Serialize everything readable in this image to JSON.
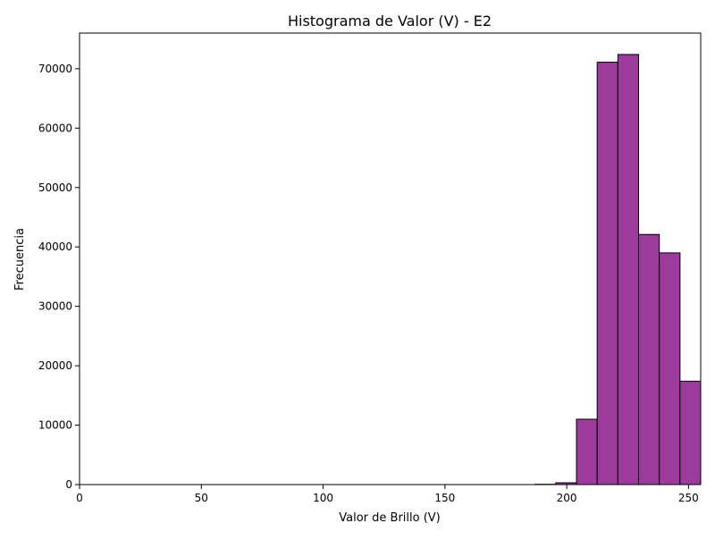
{
  "chart_data": {
    "type": "bar",
    "title": "Histograma de Valor (V) - E2",
    "xlabel": "Valor de Brillo (V)",
    "ylabel": "Frecuencia",
    "xlim": [
      0,
      255
    ],
    "ylim": [
      0,
      76000
    ],
    "xticks": [
      0,
      50,
      100,
      150,
      200,
      250
    ],
    "yticks": [
      0,
      10000,
      20000,
      30000,
      40000,
      50000,
      60000,
      70000
    ],
    "grid": false,
    "colors": {
      "bar_fill": "#9b3b9b",
      "bar_edge": "#000000"
    },
    "bins": [
      {
        "start": 187.0,
        "end": 195.5,
        "count": 50
      },
      {
        "start": 195.5,
        "end": 204.0,
        "count": 300
      },
      {
        "start": 204.0,
        "end": 212.5,
        "count": 11000
      },
      {
        "start": 212.5,
        "end": 221.0,
        "count": 71100
      },
      {
        "start": 221.0,
        "end": 229.5,
        "count": 72400
      },
      {
        "start": 229.5,
        "end": 238.0,
        "count": 42100
      },
      {
        "start": 238.0,
        "end": 246.5,
        "count": 39000
      },
      {
        "start": 246.5,
        "end": 255.0,
        "count": 17400
      }
    ]
  }
}
